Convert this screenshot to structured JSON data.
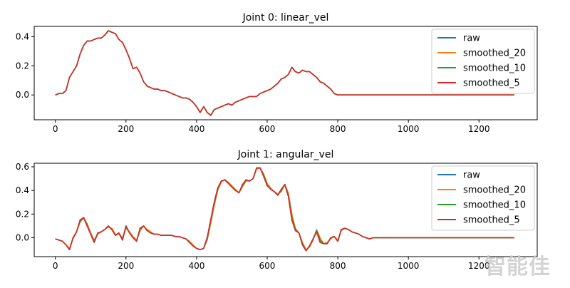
{
  "chart_data": [
    {
      "type": "line",
      "title": "Joint 0: linear_vel",
      "xlim": [
        -60,
        1365
      ],
      "ylim": [
        -0.17,
        0.47
      ],
      "xticks": [
        0,
        200,
        400,
        600,
        800,
        1000,
        1200
      ],
      "yticks": [
        0.0,
        0.2,
        0.4
      ],
      "ytick_labels": [
        "0.0",
        "0.2",
        "0.4"
      ],
      "legend_position": "top-right",
      "x": [
        0,
        10,
        20,
        30,
        40,
        50,
        60,
        70,
        80,
        90,
        100,
        110,
        120,
        130,
        140,
        150,
        160,
        170,
        180,
        190,
        200,
        210,
        220,
        230,
        240,
        250,
        260,
        270,
        280,
        290,
        300,
        310,
        320,
        330,
        340,
        350,
        360,
        370,
        380,
        390,
        400,
        410,
        420,
        430,
        440,
        450,
        460,
        470,
        480,
        490,
        500,
        510,
        520,
        530,
        540,
        550,
        560,
        570,
        580,
        590,
        600,
        610,
        620,
        630,
        640,
        650,
        660,
        670,
        680,
        690,
        700,
        710,
        720,
        730,
        740,
        750,
        760,
        770,
        780,
        790,
        800,
        810,
        820,
        830,
        840,
        850,
        860,
        870,
        880,
        890,
        900,
        910,
        920,
        930,
        940,
        950,
        1000,
        1050,
        1100,
        1150,
        1200,
        1250,
        1300
      ],
      "series": [
        {
          "name": "raw",
          "color": "#1f77b4",
          "values": [
            0.0,
            0.01,
            0.01,
            0.03,
            0.12,
            0.16,
            0.2,
            0.28,
            0.34,
            0.37,
            0.37,
            0.38,
            0.39,
            0.39,
            0.41,
            0.44,
            0.43,
            0.42,
            0.38,
            0.36,
            0.31,
            0.25,
            0.18,
            0.19,
            0.15,
            0.09,
            0.06,
            0.05,
            0.04,
            0.04,
            0.03,
            0.03,
            0.02,
            0.01,
            0.0,
            -0.01,
            -0.02,
            -0.02,
            -0.03,
            -0.05,
            -0.08,
            -0.12,
            -0.08,
            -0.12,
            -0.14,
            -0.1,
            -0.09,
            -0.08,
            -0.07,
            -0.06,
            -0.07,
            -0.05,
            -0.04,
            -0.03,
            -0.02,
            -0.01,
            -0.01,
            -0.01,
            0.01,
            0.02,
            0.03,
            0.04,
            0.06,
            0.08,
            0.11,
            0.12,
            0.14,
            0.19,
            0.16,
            0.15,
            0.17,
            0.16,
            0.16,
            0.14,
            0.12,
            0.09,
            0.08,
            0.06,
            0.04,
            0.01,
            0.0,
            0.0,
            0.0,
            0.0,
            0.0,
            0.0,
            0.0,
            0.0,
            0.0,
            0.0,
            0.0,
            0.0,
            0.0,
            0.0,
            0.0,
            0.0,
            0.0,
            0.0,
            0.0,
            0.0,
            0.0,
            0.0,
            0.0
          ]
        },
        {
          "name": "smoothed_20",
          "color": "#ff7f0e",
          "values": [
            0.0,
            0.01,
            0.01,
            0.03,
            0.12,
            0.16,
            0.2,
            0.28,
            0.34,
            0.37,
            0.37,
            0.38,
            0.39,
            0.39,
            0.41,
            0.44,
            0.43,
            0.42,
            0.38,
            0.36,
            0.31,
            0.25,
            0.18,
            0.19,
            0.15,
            0.09,
            0.06,
            0.05,
            0.04,
            0.04,
            0.03,
            0.03,
            0.02,
            0.01,
            0.0,
            -0.01,
            -0.02,
            -0.02,
            -0.03,
            -0.05,
            -0.08,
            -0.12,
            -0.08,
            -0.12,
            -0.14,
            -0.1,
            -0.09,
            -0.08,
            -0.07,
            -0.06,
            -0.07,
            -0.05,
            -0.04,
            -0.03,
            -0.02,
            -0.01,
            -0.01,
            -0.01,
            0.01,
            0.02,
            0.03,
            0.04,
            0.06,
            0.08,
            0.11,
            0.12,
            0.14,
            0.19,
            0.16,
            0.15,
            0.17,
            0.16,
            0.16,
            0.14,
            0.12,
            0.09,
            0.08,
            0.06,
            0.04,
            0.01,
            0.0,
            0.0,
            0.0,
            0.0,
            0.0,
            0.0,
            0.0,
            0.0,
            0.0,
            0.0,
            0.0,
            0.0,
            0.0,
            0.0,
            0.0,
            0.0,
            0.0,
            0.0,
            0.0,
            0.0,
            0.0,
            0.0,
            0.0
          ]
        },
        {
          "name": "smoothed_10",
          "color": "#2ca02c",
          "values": [
            0.0,
            0.01,
            0.01,
            0.03,
            0.12,
            0.16,
            0.2,
            0.28,
            0.34,
            0.37,
            0.37,
            0.38,
            0.39,
            0.39,
            0.41,
            0.44,
            0.43,
            0.42,
            0.38,
            0.36,
            0.31,
            0.25,
            0.18,
            0.19,
            0.15,
            0.09,
            0.06,
            0.05,
            0.04,
            0.04,
            0.03,
            0.03,
            0.02,
            0.01,
            0.0,
            -0.01,
            -0.02,
            -0.02,
            -0.03,
            -0.05,
            -0.08,
            -0.12,
            -0.08,
            -0.12,
            -0.14,
            -0.1,
            -0.09,
            -0.08,
            -0.07,
            -0.06,
            -0.07,
            -0.05,
            -0.04,
            -0.03,
            -0.02,
            -0.01,
            -0.01,
            -0.01,
            0.01,
            0.02,
            0.03,
            0.04,
            0.06,
            0.08,
            0.11,
            0.12,
            0.14,
            0.19,
            0.16,
            0.15,
            0.17,
            0.16,
            0.16,
            0.14,
            0.12,
            0.09,
            0.08,
            0.06,
            0.04,
            0.01,
            0.0,
            0.0,
            0.0,
            0.0,
            0.0,
            0.0,
            0.0,
            0.0,
            0.0,
            0.0,
            0.0,
            0.0,
            0.0,
            0.0,
            0.0,
            0.0,
            0.0,
            0.0,
            0.0,
            0.0,
            0.0,
            0.0,
            0.0
          ]
        },
        {
          "name": "smoothed_5",
          "color": "#d62728",
          "values": [
            0.0,
            0.01,
            0.01,
            0.03,
            0.12,
            0.16,
            0.2,
            0.28,
            0.34,
            0.37,
            0.37,
            0.38,
            0.39,
            0.39,
            0.41,
            0.44,
            0.43,
            0.42,
            0.38,
            0.36,
            0.31,
            0.25,
            0.18,
            0.19,
            0.15,
            0.09,
            0.06,
            0.05,
            0.04,
            0.04,
            0.03,
            0.03,
            0.02,
            0.01,
            0.0,
            -0.01,
            -0.02,
            -0.02,
            -0.03,
            -0.05,
            -0.08,
            -0.12,
            -0.08,
            -0.12,
            -0.14,
            -0.1,
            -0.09,
            -0.08,
            -0.07,
            -0.06,
            -0.07,
            -0.05,
            -0.04,
            -0.03,
            -0.02,
            -0.01,
            -0.01,
            -0.01,
            0.01,
            0.02,
            0.03,
            0.04,
            0.06,
            0.08,
            0.11,
            0.12,
            0.14,
            0.19,
            0.16,
            0.15,
            0.17,
            0.16,
            0.16,
            0.14,
            0.12,
            0.09,
            0.08,
            0.06,
            0.04,
            0.01,
            0.0,
            0.0,
            0.0,
            0.0,
            0.0,
            0.0,
            0.0,
            0.0,
            0.0,
            0.0,
            0.0,
            0.0,
            0.0,
            0.0,
            0.0,
            0.0,
            0.0,
            0.0,
            0.0,
            0.0,
            0.0,
            0.0,
            0.0
          ]
        }
      ]
    },
    {
      "type": "line",
      "title": "Joint 1: angular_vel",
      "xlim": [
        -60,
        1365
      ],
      "ylim": [
        -0.16,
        0.63
      ],
      "xticks": [
        0,
        200,
        400,
        600,
        800,
        1000,
        1200
      ],
      "yticks": [
        0.0,
        0.2,
        0.4,
        0.6
      ],
      "ytick_labels": [
        "0.0",
        "0.2",
        "0.4",
        "0.6"
      ],
      "legend_position": "top-right",
      "x": [
        0,
        10,
        20,
        30,
        40,
        50,
        60,
        70,
        80,
        90,
        100,
        110,
        120,
        130,
        140,
        150,
        160,
        170,
        180,
        190,
        200,
        210,
        220,
        230,
        240,
        250,
        260,
        270,
        280,
        290,
        300,
        310,
        320,
        330,
        340,
        350,
        360,
        370,
        380,
        390,
        400,
        410,
        420,
        430,
        440,
        450,
        460,
        470,
        480,
        490,
        500,
        510,
        520,
        530,
        540,
        550,
        560,
        570,
        580,
        590,
        600,
        610,
        620,
        630,
        640,
        650,
        660,
        670,
        680,
        690,
        700,
        710,
        720,
        730,
        740,
        750,
        760,
        770,
        780,
        790,
        800,
        810,
        820,
        830,
        840,
        850,
        860,
        870,
        880,
        890,
        900,
        910,
        920,
        930,
        940,
        950,
        1000,
        1050,
        1100,
        1150,
        1200,
        1250,
        1300
      ],
      "series": [
        {
          "name": "raw",
          "color": "#1f77b4",
          "values": [
            -0.01,
            -0.02,
            -0.03,
            -0.06,
            -0.1,
            0.0,
            0.05,
            0.15,
            0.17,
            0.1,
            0.03,
            -0.04,
            0.04,
            0.05,
            0.07,
            0.1,
            0.07,
            0.02,
            0.04,
            -0.02,
            0.1,
            0.04,
            0.0,
            -0.03,
            0.08,
            0.1,
            0.06,
            0.04,
            0.03,
            0.03,
            0.02,
            0.02,
            0.02,
            0.02,
            0.01,
            0.01,
            0.0,
            -0.01,
            -0.04,
            -0.07,
            -0.09,
            -0.1,
            -0.09,
            0.0,
            0.15,
            0.3,
            0.42,
            0.48,
            0.49,
            0.46,
            0.43,
            0.4,
            0.38,
            0.45,
            0.49,
            0.48,
            0.5,
            0.59,
            0.59,
            0.52,
            0.44,
            0.41,
            0.39,
            0.36,
            0.41,
            0.45,
            0.35,
            0.15,
            0.06,
            0.04,
            -0.06,
            -0.11,
            -0.07,
            -0.01,
            0.05,
            -0.04,
            -0.05,
            -0.05,
            0.0,
            0.01,
            -0.03,
            0.07,
            0.08,
            0.07,
            0.05,
            0.04,
            0.03,
            0.01,
            0.0,
            -0.01,
            0.0,
            0.0,
            0.0,
            0.0,
            0.0,
            0.0,
            0.0,
            0.0,
            0.0,
            0.0,
            0.0,
            0.0,
            0.0
          ]
        },
        {
          "name": "smoothed_20",
          "color": "#ff7f0e",
          "values": [
            -0.01,
            -0.02,
            -0.03,
            -0.06,
            -0.09,
            -0.01,
            0.05,
            0.13,
            0.17,
            0.12,
            0.04,
            -0.02,
            0.03,
            0.05,
            0.07,
            0.09,
            0.08,
            0.03,
            0.03,
            0.0,
            0.08,
            0.05,
            0.01,
            -0.02,
            0.06,
            0.1,
            0.07,
            0.05,
            0.03,
            0.03,
            0.02,
            0.02,
            0.02,
            0.02,
            0.01,
            0.01,
            0.0,
            -0.01,
            -0.03,
            -0.06,
            -0.09,
            -0.1,
            -0.09,
            -0.02,
            0.12,
            0.27,
            0.4,
            0.47,
            0.49,
            0.47,
            0.44,
            0.41,
            0.38,
            0.43,
            0.48,
            0.48,
            0.5,
            0.58,
            0.59,
            0.54,
            0.46,
            0.42,
            0.39,
            0.37,
            0.39,
            0.45,
            0.38,
            0.2,
            0.08,
            0.04,
            -0.04,
            -0.1,
            -0.08,
            -0.02,
            0.07,
            0.0,
            -0.05,
            -0.04,
            -0.01,
            0.01,
            -0.02,
            0.06,
            0.08,
            0.07,
            0.05,
            0.04,
            0.03,
            0.01,
            0.0,
            -0.01,
            0.0,
            0.0,
            0.0,
            0.0,
            0.0,
            0.0,
            0.0,
            0.0,
            0.0,
            0.0,
            0.0,
            0.0,
            0.0
          ]
        },
        {
          "name": "smoothed_10",
          "color": "#2ca02c",
          "values": [
            -0.01,
            -0.02,
            -0.03,
            -0.06,
            -0.1,
            0.0,
            0.05,
            0.14,
            0.17,
            0.11,
            0.03,
            -0.03,
            0.04,
            0.05,
            0.07,
            0.1,
            0.07,
            0.02,
            0.04,
            -0.01,
            0.09,
            0.04,
            0.0,
            -0.03,
            0.07,
            0.1,
            0.06,
            0.04,
            0.03,
            0.03,
            0.02,
            0.02,
            0.02,
            0.02,
            0.01,
            0.01,
            0.0,
            -0.01,
            -0.04,
            -0.07,
            -0.09,
            -0.1,
            -0.09,
            -0.01,
            0.14,
            0.29,
            0.41,
            0.48,
            0.49,
            0.46,
            0.43,
            0.4,
            0.38,
            0.44,
            0.49,
            0.48,
            0.5,
            0.59,
            0.59,
            0.53,
            0.45,
            0.41,
            0.39,
            0.36,
            0.4,
            0.45,
            0.36,
            0.17,
            0.07,
            0.04,
            -0.05,
            -0.11,
            -0.07,
            -0.01,
            0.06,
            -0.02,
            -0.05,
            -0.05,
            0.0,
            0.01,
            -0.03,
            0.07,
            0.08,
            0.07,
            0.05,
            0.04,
            0.03,
            0.01,
            0.0,
            -0.01,
            0.0,
            0.0,
            0.0,
            0.0,
            0.0,
            0.0,
            0.0,
            0.0,
            0.0,
            0.0,
            0.0,
            0.0,
            0.0
          ]
        },
        {
          "name": "smoothed_5",
          "color": "#d62728",
          "values": [
            -0.01,
            -0.02,
            -0.03,
            -0.06,
            -0.1,
            0.0,
            0.05,
            0.15,
            0.17,
            0.1,
            0.03,
            -0.04,
            0.04,
            0.05,
            0.07,
            0.1,
            0.07,
            0.02,
            0.04,
            -0.02,
            0.1,
            0.04,
            0.0,
            -0.03,
            0.08,
            0.1,
            0.06,
            0.04,
            0.03,
            0.03,
            0.02,
            0.02,
            0.02,
            0.02,
            0.01,
            0.01,
            0.0,
            -0.01,
            -0.04,
            -0.07,
            -0.09,
            -0.1,
            -0.09,
            0.0,
            0.15,
            0.3,
            0.42,
            0.48,
            0.49,
            0.46,
            0.43,
            0.4,
            0.38,
            0.45,
            0.49,
            0.48,
            0.5,
            0.59,
            0.59,
            0.52,
            0.44,
            0.41,
            0.39,
            0.36,
            0.41,
            0.45,
            0.35,
            0.15,
            0.06,
            0.04,
            -0.06,
            -0.11,
            -0.07,
            -0.01,
            0.05,
            -0.04,
            -0.05,
            -0.05,
            0.0,
            0.01,
            -0.03,
            0.07,
            0.08,
            0.07,
            0.05,
            0.04,
            0.03,
            0.01,
            0.0,
            -0.01,
            0.0,
            0.0,
            0.0,
            0.0,
            0.0,
            0.0,
            0.0,
            0.0,
            0.0,
            0.0,
            0.0,
            0.0,
            0.0
          ]
        }
      ]
    }
  ],
  "watermark": {
    "text": "智能佳"
  }
}
